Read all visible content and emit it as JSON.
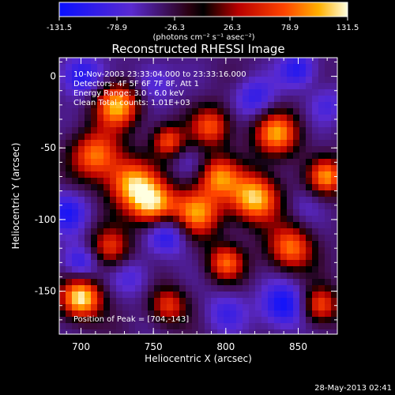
{
  "chart_data": {
    "type": "heatmap",
    "title": "Reconstructed RHESSI Image",
    "colorbar": {
      "ticks": [
        "-131.5",
        "-78.9",
        "-26.3",
        "26.3",
        "78.9",
        "131.5"
      ],
      "range": [
        -131.5,
        131.5
      ],
      "unit_label": "(photons cm⁻² s⁻¹ asec⁻²)"
    },
    "xlabel": "Heliocentric X (arcsec)",
    "ylabel": "Heliocentric Y (arcsec)",
    "xticks": [
      "700",
      "750",
      "800",
      "850"
    ],
    "yticks": [
      "0",
      "-50",
      "-100",
      "-150"
    ],
    "xlim": [
      685,
      877
    ],
    "ylim": [
      -180,
      13
    ],
    "annotations": [
      "10-Nov-2003 23:33:04.000 to 23:33:16.000",
      "Detectors: 4F 5F 6F 7F 8F, Att 1",
      "Energy Range: 3.0 - 6.0 keV",
      "Clean   Total counts: 1.01E+03"
    ],
    "peak_label": "Position of Peak = [704,-143]",
    "footer": "28-May-2013 02:41",
    "blobs": [
      {
        "x": 700,
        "y": -155,
        "v": 131,
        "r": 10
      },
      {
        "x": 725,
        "y": -20,
        "v": 110,
        "r": 11
      },
      {
        "x": 710,
        "y": -55,
        "v": 85,
        "r": 12
      },
      {
        "x": 735,
        "y": -75,
        "v": 100,
        "r": 12
      },
      {
        "x": 750,
        "y": -90,
        "v": 105,
        "r": 11
      },
      {
        "x": 760,
        "y": -45,
        "v": 70,
        "r": 8
      },
      {
        "x": 720,
        "y": -120,
        "v": 60,
        "r": 10
      },
      {
        "x": 790,
        "y": -35,
        "v": 70,
        "r": 10
      },
      {
        "x": 780,
        "y": -95,
        "v": 95,
        "r": 12
      },
      {
        "x": 795,
        "y": -70,
        "v": 80,
        "r": 10
      },
      {
        "x": 800,
        "y": -130,
        "v": 75,
        "r": 9
      },
      {
        "x": 820,
        "y": -85,
        "v": 120,
        "r": 12
      },
      {
        "x": 835,
        "y": -40,
        "v": 95,
        "r": 11
      },
      {
        "x": 845,
        "y": -120,
        "v": 85,
        "r": 11
      },
      {
        "x": 870,
        "y": -70,
        "v": 90,
        "r": 9
      },
      {
        "x": 865,
        "y": -160,
        "v": 75,
        "r": 9
      },
      {
        "x": 760,
        "y": -160,
        "v": 60,
        "r": 9
      },
      {
        "x": 700,
        "y": 0,
        "v": -120,
        "r": 10
      },
      {
        "x": 690,
        "y": -95,
        "v": -110,
        "r": 10
      },
      {
        "x": 750,
        "y": -5,
        "v": -90,
        "r": 10
      },
      {
        "x": 760,
        "y": -110,
        "v": -120,
        "r": 10
      },
      {
        "x": 735,
        "y": -140,
        "v": -80,
        "r": 10
      },
      {
        "x": 820,
        "y": -15,
        "v": -100,
        "r": 10
      },
      {
        "x": 850,
        "y": 5,
        "v": -110,
        "r": 9
      },
      {
        "x": 800,
        "y": -165,
        "v": -85,
        "r": 10
      },
      {
        "x": 840,
        "y": -160,
        "v": -130,
        "r": 11
      },
      {
        "x": 870,
        "y": -20,
        "v": -80,
        "r": 9
      },
      {
        "x": 855,
        "y": -90,
        "v": -60,
        "r": 9
      },
      {
        "x": 700,
        "y": -130,
        "v": -110,
        "r": 9
      },
      {
        "x": 775,
        "y": -60,
        "v": -60,
        "r": 8
      }
    ]
  }
}
